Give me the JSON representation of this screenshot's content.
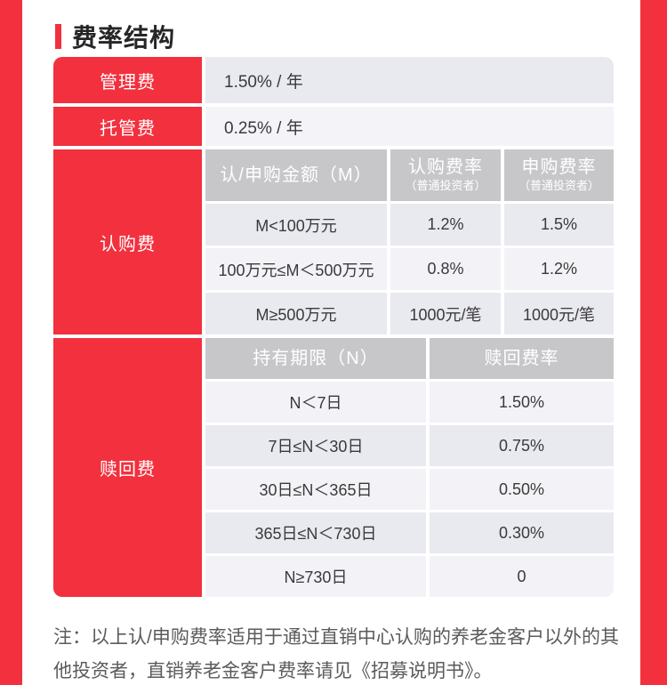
{
  "page": {
    "title": "费率结构",
    "accent_red": "#f2303e",
    "header_gray": "#c7c6c9"
  },
  "table": {
    "management": {
      "label": "管理费",
      "value": "1.50% / 年"
    },
    "custody": {
      "label": "托管费",
      "value": "0.25% / 年"
    },
    "subscription": {
      "label": "认购费",
      "headers": [
        {
          "main": "认/申购金额（M）",
          "sub": ""
        },
        {
          "main": "认购费率",
          "sub": "（普通投资者）"
        },
        {
          "main": "申购费率",
          "sub": "（普通投资者）"
        }
      ],
      "rows": [
        [
          "M<100万元",
          "1.2%",
          "1.5%"
        ],
        [
          "100万元≤M＜500万元",
          "0.8%",
          "1.2%"
        ],
        [
          "M≥500万元",
          "1000元/笔",
          "1000元/笔"
        ]
      ]
    },
    "redemption": {
      "label": "赎回费",
      "headers": [
        {
          "main": "持有期限（N）"
        },
        {
          "main": "赎回费率"
        }
      ],
      "rows": [
        [
          "N＜7日",
          "1.50%"
        ],
        [
          "7日≤N＜30日",
          "0.75%"
        ],
        [
          "30日≤N＜365日",
          "0.50%"
        ],
        [
          "365日≤N＜730日",
          "0.30%"
        ],
        [
          "N≥730日",
          "0"
        ]
      ]
    }
  },
  "note": "注：以上认/申购费率适用于通过直销中心认购的养老金客户以外的其他投资者，直销养老金客户费率请见《招募说明书》。"
}
